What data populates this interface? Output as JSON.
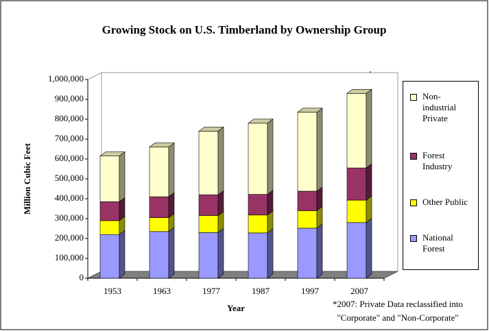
{
  "chart_data": {
    "type": "bar3d_stacked",
    "title": "Growing Stock on U.S. Timberland by Ownership Group",
    "x_label": "Year",
    "y_label": "Million Cubic Feet",
    "annotation": "*",
    "note": [
      "*2007: Private Data reclassified into",
      "\"Corporate\" and  \"Non-Corporate\""
    ],
    "categories": [
      "1953",
      "1963",
      "1977",
      "1987",
      "1997",
      "2007"
    ],
    "series": [
      {
        "name": "National Forest",
        "color": "#9999ff",
        "values": [
          220000,
          235000,
          230000,
          228000,
          252000,
          280000
        ]
      },
      {
        "name": "Other Public",
        "color": "#ffff00",
        "values": [
          70000,
          70000,
          85000,
          90000,
          88000,
          113000
        ]
      },
      {
        "name": "Forest Industry",
        "color": "#993366",
        "values": [
          95000,
          105000,
          105000,
          104000,
          98000,
          162000
        ]
      },
      {
        "name": "Non-industrial Private",
        "color": "#ffffcc",
        "values": [
          230000,
          250000,
          320000,
          358000,
          397000,
          375000
        ]
      }
    ],
    "ylim": [
      0,
      1000000
    ],
    "yticks": [
      0,
      {
        "value": 100000,
        "label": "100,000"
      },
      {
        "value": 200000,
        "label": "200,000"
      },
      {
        "value": 300000,
        "label": "300,000"
      },
      {
        "value": 400000,
        "label": "400,000"
      },
      {
        "value": 500000,
        "label": "500,000"
      },
      {
        "value": 600000,
        "label": "600,000"
      },
      {
        "value": 700000,
        "label": "700,000"
      },
      {
        "value": 800000,
        "label": "800,000"
      },
      {
        "value": 900000,
        "label": "900,000"
      },
      {
        "value": 1000000,
        "label": "1,000,000"
      }
    ],
    "legend": "right"
  }
}
